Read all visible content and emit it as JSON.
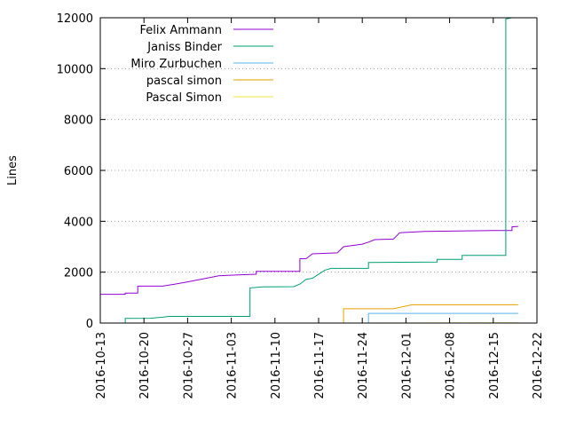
{
  "chart_data": {
    "type": "line",
    "ylabel": "Lines",
    "xlabel": "",
    "xlim": [
      "2016-10-13",
      "2016-12-22"
    ],
    "ylim": [
      0,
      12000
    ],
    "x_ticks": [
      "2016-10-13",
      "2016-10-20",
      "2016-10-27",
      "2016-11-03",
      "2016-11-10",
      "2016-11-17",
      "2016-11-24",
      "2016-12-01",
      "2016-12-08",
      "2016-12-15",
      "2016-12-22"
    ],
    "y_ticks": [
      0,
      2000,
      4000,
      6000,
      8000,
      10000,
      12000
    ],
    "grid": "dotted",
    "legend_position": "top-left",
    "series": [
      {
        "name": "Felix Ammann",
        "color": "#9400d3",
        "points": [
          [
            "2016-10-13",
            1130
          ],
          [
            "2016-10-17",
            1130
          ],
          [
            "2016-10-17",
            1180
          ],
          [
            "2016-10-19",
            1180
          ],
          [
            "2016-10-19",
            1450
          ],
          [
            "2016-10-23",
            1450
          ],
          [
            "2016-10-25",
            1530
          ],
          [
            "2016-10-27",
            1620
          ],
          [
            "2016-10-30",
            1760
          ],
          [
            "2016-11-01",
            1860
          ],
          [
            "2016-11-05",
            1900
          ],
          [
            "2016-11-07",
            1920
          ],
          [
            "2016-11-07",
            2030
          ],
          [
            "2016-11-14",
            2030
          ],
          [
            "2016-11-14",
            2530
          ],
          [
            "2016-11-15",
            2530
          ],
          [
            "2016-11-16",
            2720
          ],
          [
            "2016-11-20",
            2760
          ],
          [
            "2016-11-21",
            3000
          ],
          [
            "2016-11-24",
            3100
          ],
          [
            "2016-11-25",
            3180
          ],
          [
            "2016-11-26",
            3280
          ],
          [
            "2016-11-29",
            3300
          ],
          [
            "2016-11-30",
            3550
          ],
          [
            "2016-12-04",
            3600
          ],
          [
            "2016-12-15",
            3640
          ],
          [
            "2016-12-18",
            3640
          ],
          [
            "2016-12-18",
            3780
          ],
          [
            "2016-12-19",
            3800
          ]
        ]
      },
      {
        "name": "Janiss Binder",
        "color": "#009e73",
        "points": [
          [
            "2016-10-17",
            0
          ],
          [
            "2016-10-17",
            180
          ],
          [
            "2016-10-21",
            190
          ],
          [
            "2016-10-23",
            230
          ],
          [
            "2016-10-24",
            260
          ],
          [
            "2016-11-06",
            260
          ],
          [
            "2016-11-06",
            1380
          ],
          [
            "2016-11-08",
            1420
          ],
          [
            "2016-11-13",
            1430
          ],
          [
            "2016-11-14",
            1530
          ],
          [
            "2016-11-15",
            1720
          ],
          [
            "2016-11-16",
            1760
          ],
          [
            "2016-11-18",
            2080
          ],
          [
            "2016-11-19",
            2150
          ],
          [
            "2016-11-25",
            2150
          ],
          [
            "2016-11-25",
            2380
          ],
          [
            "2016-12-06",
            2400
          ],
          [
            "2016-12-06",
            2500
          ],
          [
            "2016-12-10",
            2500
          ],
          [
            "2016-12-10",
            2660
          ],
          [
            "2016-12-17",
            2660
          ],
          [
            "2016-12-17",
            7300
          ],
          [
            "2016-12-17",
            11950
          ],
          [
            "2016-12-18",
            12000
          ]
        ]
      },
      {
        "name": "Miro Zurbuchen",
        "color": "#56b4e9",
        "points": [
          [
            "2016-11-25",
            0
          ],
          [
            "2016-11-25",
            380
          ],
          [
            "2016-12-19",
            380
          ]
        ]
      },
      {
        "name": "pascal simon",
        "color": "#e69f00",
        "points": [
          [
            "2016-11-21",
            0
          ],
          [
            "2016-11-21",
            560
          ],
          [
            "2016-11-29",
            560
          ],
          [
            "2016-12-02",
            720
          ],
          [
            "2016-12-19",
            720
          ]
        ]
      },
      {
        "name": "Pascal Simon",
        "color": "#f0e442",
        "points": [
          [
            "2016-11-22",
            0
          ],
          [
            "2016-12-19",
            10
          ]
        ]
      }
    ]
  }
}
